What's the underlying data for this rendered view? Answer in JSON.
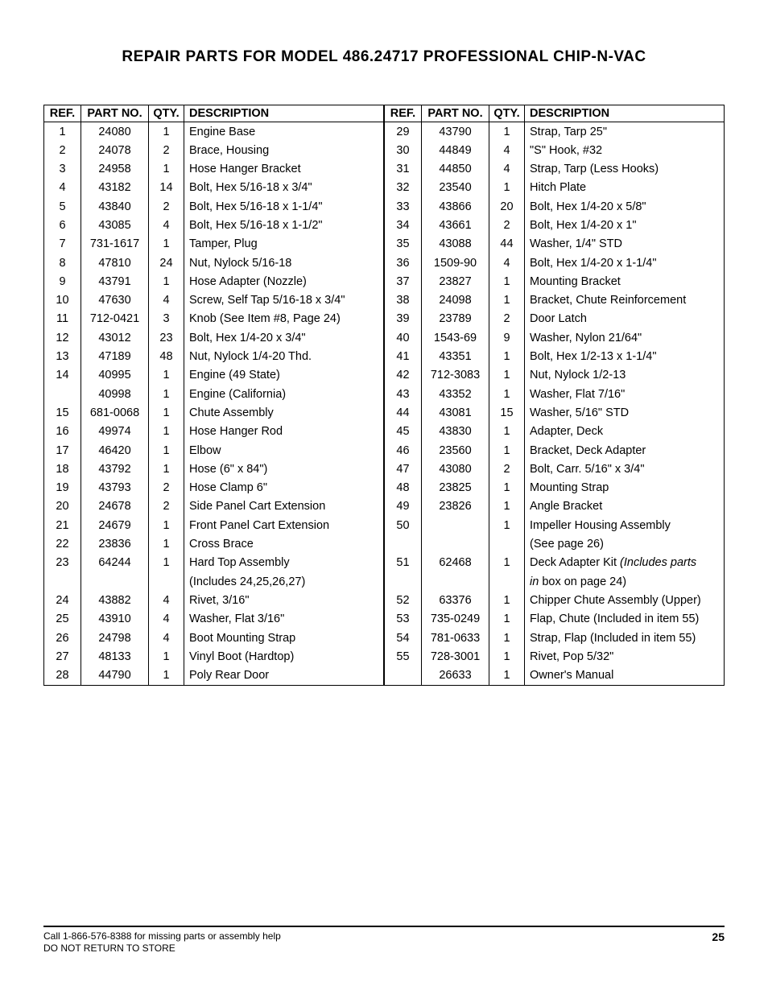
{
  "title": "REPAIR PARTS FOR MODEL 486.24717 PROFESSIONAL CHIP-N-VAC",
  "headers": {
    "ref": "REF.",
    "part": "PART NO.",
    "qty": "QTY.",
    "desc": "DESCRIPTION"
  },
  "left": [
    {
      "ref": "1",
      "part": "24080",
      "qty": "1",
      "desc": "Engine Base"
    },
    {
      "ref": "2",
      "part": "24078",
      "qty": "2",
      "desc": "Brace, Housing"
    },
    {
      "ref": "3",
      "part": "24958",
      "qty": "1",
      "desc": "Hose Hanger Bracket"
    },
    {
      "ref": "4",
      "part": "43182",
      "qty": "14",
      "desc": "Bolt, Hex 5/16-18 x 3/4\""
    },
    {
      "ref": "5",
      "part": "43840",
      "qty": "2",
      "desc": "Bolt, Hex 5/16-18 x 1-1/4\""
    },
    {
      "ref": "6",
      "part": "43085",
      "qty": "4",
      "desc": "Bolt, Hex 5/16-18 x 1-1/2\""
    },
    {
      "ref": "7",
      "part": "731-1617",
      "qty": "1",
      "desc": "Tamper, Plug"
    },
    {
      "ref": "8",
      "part": "47810",
      "qty": "24",
      "desc": "Nut, Nylock 5/16-18"
    },
    {
      "ref": "9",
      "part": "43791",
      "qty": "1",
      "desc": "Hose Adapter (Nozzle)"
    },
    {
      "ref": "10",
      "part": "47630",
      "qty": "4",
      "desc": "Screw, Self Tap  5/16-18 x 3/4\""
    },
    {
      "ref": "11",
      "part": "712-0421",
      "qty": "3",
      "desc": "Knob  (See Item #8, Page 24)"
    },
    {
      "ref": "12",
      "part": "43012",
      "qty": "23",
      "desc": "Bolt, Hex 1/4-20 x 3/4\""
    },
    {
      "ref": "13",
      "part": "47189",
      "qty": "48",
      "desc": "Nut, Nylock 1/4-20 Thd."
    },
    {
      "ref": "14",
      "part": "40995",
      "qty": "1",
      "desc": "Engine (49 State)"
    },
    {
      "ref": "",
      "part": "40998",
      "qty": "1",
      "desc": "Engine (California)"
    },
    {
      "ref": "15",
      "part": "681-0068",
      "qty": "1",
      "desc": "Chute Assembly"
    },
    {
      "ref": "16",
      "part": "49974",
      "qty": "1",
      "desc": "Hose Hanger Rod"
    },
    {
      "ref": "17",
      "part": "46420",
      "qty": "1",
      "desc": "Elbow"
    },
    {
      "ref": "18",
      "part": "43792",
      "qty": "1",
      "desc": "Hose (6\" x 84\")"
    },
    {
      "ref": "19",
      "part": "43793",
      "qty": "2",
      "desc": "Hose Clamp 6\""
    },
    {
      "ref": "20",
      "part": "24678",
      "qty": "2",
      "desc": "Side Panel Cart Extension"
    },
    {
      "ref": "21",
      "part": "24679",
      "qty": "1",
      "desc": "Front Panel Cart Extension"
    },
    {
      "ref": "22",
      "part": "23836",
      "qty": "1",
      "desc": "Cross Brace"
    },
    {
      "ref": "23",
      "part": "64244",
      "qty": "1",
      "desc": "Hard Top Assembly"
    },
    {
      "ref": "",
      "part": "",
      "qty": "",
      "desc": "(Includes 24,25,26,27)"
    },
    {
      "ref": "24",
      "part": "43882",
      "qty": "4",
      "desc": "Rivet, 3/16\""
    },
    {
      "ref": "25",
      "part": "43910",
      "qty": "4",
      "desc": "Washer, Flat  3/16\""
    },
    {
      "ref": "26",
      "part": "24798",
      "qty": "4",
      "desc": "Boot Mounting Strap"
    },
    {
      "ref": "27",
      "part": "48133",
      "qty": "1",
      "desc": "Vinyl Boot (Hardtop)"
    },
    {
      "ref": "28",
      "part": "44790",
      "qty": "1",
      "desc": "Poly Rear Door"
    }
  ],
  "right": [
    {
      "ref": "29",
      "part": "43790",
      "qty": "1",
      "desc": "Strap, Tarp  25\""
    },
    {
      "ref": "30",
      "part": "44849",
      "qty": "4",
      "desc": "\"S\" Hook,  #32"
    },
    {
      "ref": "31",
      "part": "44850",
      "qty": "4",
      "desc": "Strap, Tarp (Less Hooks)"
    },
    {
      "ref": "32",
      "part": "23540",
      "qty": "1",
      "desc": "Hitch Plate"
    },
    {
      "ref": "33",
      "part": "43866",
      "qty": "20",
      "desc": "Bolt, Hex 1/4-20 x 5/8\""
    },
    {
      "ref": "34",
      "part": "43661",
      "qty": "2",
      "desc": "Bolt, Hex 1/4-20 x 1\""
    },
    {
      "ref": "35",
      "part": "43088",
      "qty": "44",
      "desc": "Washer, 1/4\" STD"
    },
    {
      "ref": "36",
      "part": "1509-90",
      "qty": "4",
      "desc": "Bolt, Hex 1/4-20 x 1-1/4\""
    },
    {
      "ref": "37",
      "part": "23827",
      "qty": "1",
      "desc": "Mounting Bracket"
    },
    {
      "ref": "38",
      "part": "24098",
      "qty": "1",
      "desc": "Bracket, Chute Reinforcement"
    },
    {
      "ref": "39",
      "part": "23789",
      "qty": "2",
      "desc": "Door Latch"
    },
    {
      "ref": "40",
      "part": "1543-69",
      "qty": "9",
      "desc": "Washer, Nylon 21/64\""
    },
    {
      "ref": "41",
      "part": "43351",
      "qty": "1",
      "desc": "Bolt, Hex 1/2-13 x 1-1/4\""
    },
    {
      "ref": "42",
      "part": "712-3083",
      "qty": "1",
      "desc": "Nut, Nylock 1/2-13"
    },
    {
      "ref": "43",
      "part": "43352",
      "qty": "1",
      "desc": "Washer, Flat 7/16\""
    },
    {
      "ref": "44",
      "part": "43081",
      "qty": "15",
      "desc": "Washer, 5/16\" STD"
    },
    {
      "ref": "45",
      "part": "43830",
      "qty": "1",
      "desc": "Adapter, Deck"
    },
    {
      "ref": "46",
      "part": "23560",
      "qty": "1",
      "desc": "Bracket, Deck Adapter"
    },
    {
      "ref": "47",
      "part": "43080",
      "qty": "2",
      "desc": "Bolt, Carr. 5/16\" x 3/4\""
    },
    {
      "ref": "48",
      "part": "23825",
      "qty": "1",
      "desc": "Mounting Strap"
    },
    {
      "ref": "49",
      "part": "23826",
      "qty": "1",
      "desc": "Angle Bracket"
    },
    {
      "ref": "50",
      "part": "",
      "qty": "1",
      "desc": "Impeller Housing Assembly"
    },
    {
      "ref": "",
      "part": "",
      "qty": "",
      "desc": "(See page 26)"
    },
    {
      "ref": "51",
      "part": "62468",
      "qty": "1",
      "desc": "Deck Adapter Kit <span class=\"italic\">(Includes parts</span>"
    },
    {
      "ref": "",
      "part": "",
      "qty": "",
      "desc": "<span class=\"italic\">in</span> box on page 24)"
    },
    {
      "ref": "52",
      "part": "63376",
      "qty": "1",
      "desc": "Chipper Chute Assembly (Upper)"
    },
    {
      "ref": "53",
      "part": "735-0249",
      "qty": "1",
      "desc": "Flap, Chute (Included in item 55)"
    },
    {
      "ref": "54",
      "part": "781-0633",
      "qty": "1",
      "desc": "Strap, Flap (Included in item 55)"
    },
    {
      "ref": "55",
      "part": "728-3001",
      "qty": "1",
      "desc": "Rivet, Pop 5/32\""
    },
    {
      "ref": "",
      "part": "26633",
      "qty": "1",
      "desc": "Owner's Manual"
    }
  ],
  "footer": {
    "line1": "Call 1-866-576-8388 for missing parts or assembly help",
    "line2": "DO NOT RETURN TO STORE",
    "page": "25"
  },
  "styling": {
    "font_family": "Arial, Helvetica, sans-serif",
    "title_fontsize": 19,
    "body_fontsize": 14.5,
    "footer_fontsize": 12,
    "border_color": "#000000",
    "background_color": "#ffffff",
    "text_color": "#000000",
    "col_widths": {
      "ref": 46,
      "part": 84,
      "qty": 44,
      "desc": 248
    }
  }
}
